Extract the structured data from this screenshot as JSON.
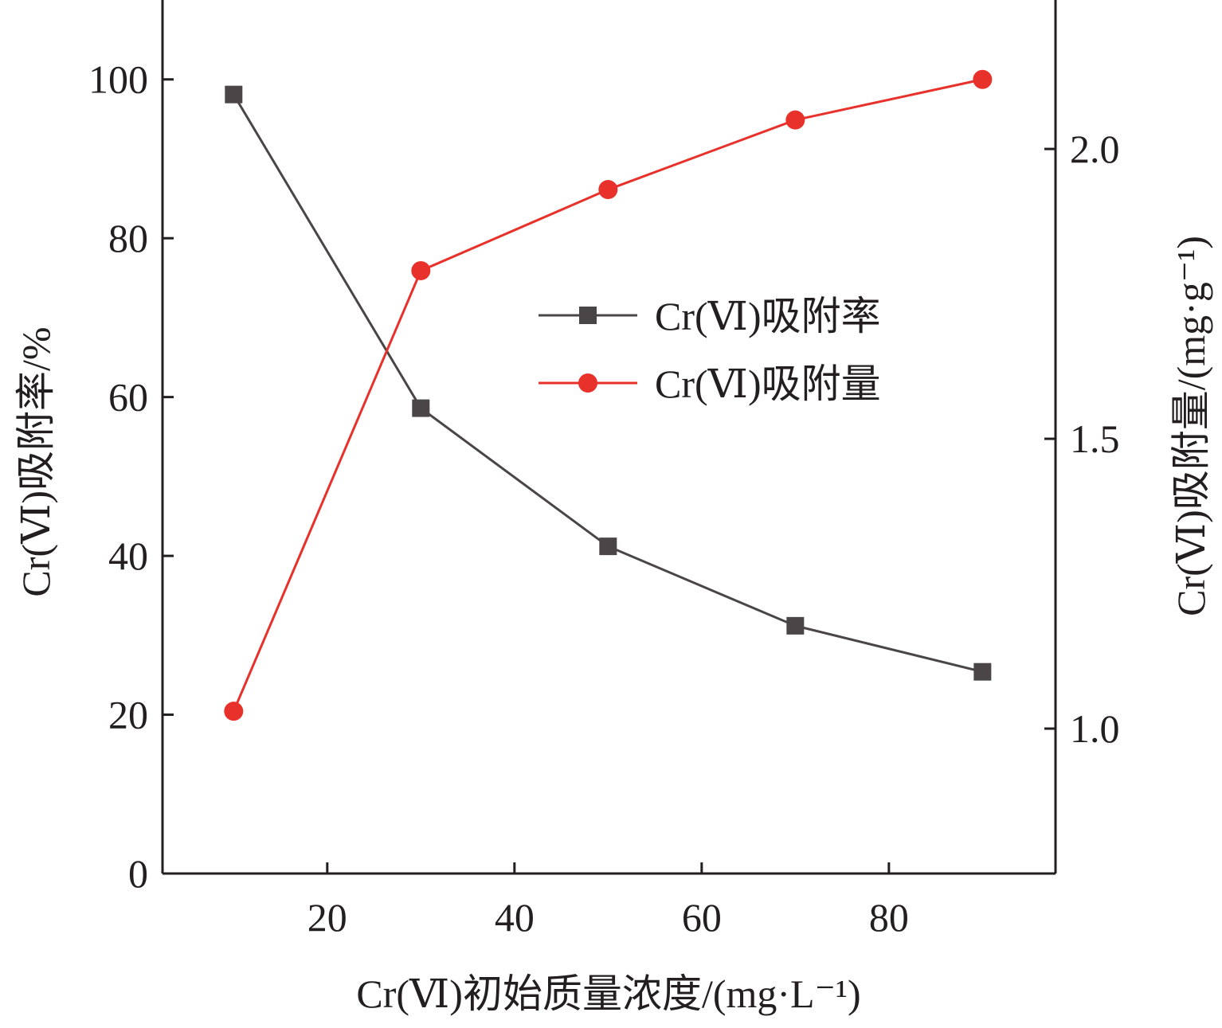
{
  "chart_data": {
    "type": "line",
    "title": "",
    "xlabel": "Cr(Ⅵ)初始质量浓度/(mg·L⁻¹)",
    "ylabel_left": "Cr(Ⅵ)吸附率/%",
    "ylabel_right": "Cr(Ⅵ)吸附量/(mg·g⁻¹)",
    "x": [
      10,
      30,
      50,
      70,
      90
    ],
    "xlim": [
      2.4,
      97.8
    ],
    "ylim_left": [
      0,
      110
    ],
    "ylim_right": [
      0.75,
      2.257
    ],
    "xticks": [
      "20",
      "40",
      "60",
      "80"
    ],
    "xtick_values": [
      20,
      40,
      60,
      80
    ],
    "yticks_left": [
      "0",
      "20",
      "40",
      "60",
      "80",
      "100"
    ],
    "ytick_left_values": [
      0,
      20,
      40,
      60,
      80,
      100
    ],
    "yticks_right": [
      "1.0",
      "1.5",
      "2.0"
    ],
    "ytick_right_values": [
      1.0,
      1.5,
      2.0
    ],
    "grid": false,
    "legend_position": "center-right",
    "series": [
      {
        "name": "Cr(Ⅵ)吸附率",
        "axis": "left",
        "marker": "square",
        "color": "#4a4546",
        "values": [
          98.1,
          58.6,
          41.2,
          31.2,
          25.4
        ]
      },
      {
        "name": "Cr(Ⅵ)吸附量",
        "axis": "right",
        "marker": "circle",
        "color": "#e8312a",
        "values": [
          1.03,
          1.79,
          1.93,
          2.05,
          2.12
        ]
      }
    ]
  }
}
